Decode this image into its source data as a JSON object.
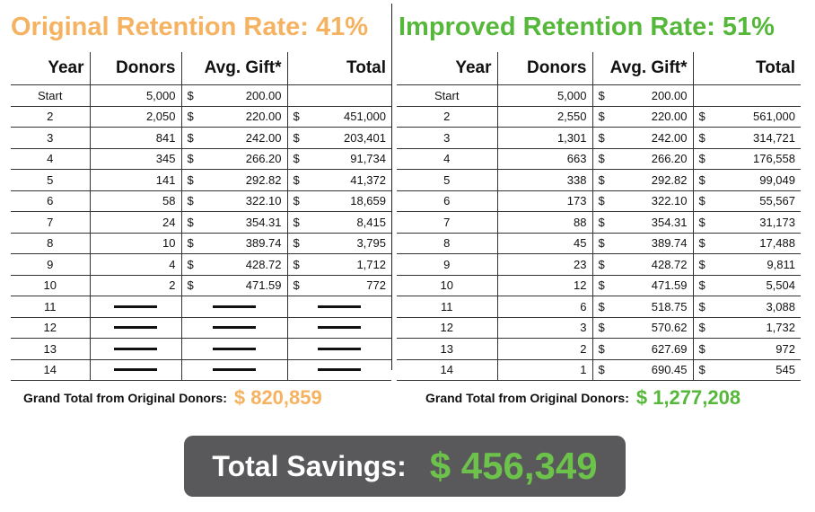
{
  "left": {
    "title": "Original Retention Rate: 41%",
    "headers": {
      "year": "Year",
      "donors": "Donors",
      "avg_gift": "Avg. Gift*",
      "total": "Total"
    },
    "rows": [
      {
        "year": "Start",
        "donors": "5,000",
        "avg_gift": "200.00",
        "total": ""
      },
      {
        "year": "2",
        "donors": "2,050",
        "avg_gift": "220.00",
        "total": "451,000"
      },
      {
        "year": "3",
        "donors": "841",
        "avg_gift": "242.00",
        "total": "203,401"
      },
      {
        "year": "4",
        "donors": "345",
        "avg_gift": "266.20",
        "total": "91,734"
      },
      {
        "year": "5",
        "donors": "141",
        "avg_gift": "292.82",
        "total": "41,372"
      },
      {
        "year": "6",
        "donors": "58",
        "avg_gift": "322.10",
        "total": "18,659"
      },
      {
        "year": "7",
        "donors": "24",
        "avg_gift": "354.31",
        "total": "8,415"
      },
      {
        "year": "8",
        "donors": "10",
        "avg_gift": "389.74",
        "total": "3,795"
      },
      {
        "year": "9",
        "donors": "4",
        "avg_gift": "428.72",
        "total": "1,712"
      },
      {
        "year": "10",
        "donors": "2",
        "avg_gift": "471.59",
        "total": "772"
      }
    ],
    "empty_years": [
      "11",
      "12",
      "13",
      "14"
    ],
    "grand_label": "Grand Total from Original Donors:",
    "grand_value": "$ 820,859"
  },
  "right": {
    "title": "Improved Retention Rate: 51%",
    "headers": {
      "year": "Year",
      "donors": "Donors",
      "avg_gift": "Avg. Gift*",
      "total": "Total"
    },
    "rows": [
      {
        "year": "Start",
        "donors": "5,000",
        "avg_gift": "200.00",
        "total": ""
      },
      {
        "year": "2",
        "donors": "2,550",
        "avg_gift": "220.00",
        "total": "561,000"
      },
      {
        "year": "3",
        "donors": "1,301",
        "avg_gift": "242.00",
        "total": "314,721"
      },
      {
        "year": "4",
        "donors": "663",
        "avg_gift": "266.20",
        "total": "176,558"
      },
      {
        "year": "5",
        "donors": "338",
        "avg_gift": "292.82",
        "total": "99,049"
      },
      {
        "year": "6",
        "donors": "173",
        "avg_gift": "322.10",
        "total": "55,567"
      },
      {
        "year": "7",
        "donors": "88",
        "avg_gift": "354.31",
        "total": "31,173"
      },
      {
        "year": "8",
        "donors": "45",
        "avg_gift": "389.74",
        "total": "17,488"
      },
      {
        "year": "9",
        "donors": "23",
        "avg_gift": "428.72",
        "total": "9,811"
      },
      {
        "year": "10",
        "donors": "12",
        "avg_gift": "471.59",
        "total": "5,504"
      },
      {
        "year": "11",
        "donors": "6",
        "avg_gift": "518.75",
        "total": "3,088"
      },
      {
        "year": "12",
        "donors": "3",
        "avg_gift": "570.62",
        "total": "1,732"
      },
      {
        "year": "13",
        "donors": "2",
        "avg_gift": "627.69",
        "total": "972"
      },
      {
        "year": "14",
        "donors": "1",
        "avg_gift": "690.45",
        "total": "545"
      }
    ],
    "grand_label": "Grand Total from Original Donors:",
    "grand_value": "$ 1,277,208"
  },
  "currency_symbol": "$",
  "savings": {
    "label": "Total Savings:",
    "value": "$ 456,349"
  },
  "colors": {
    "orange": "#f5b260",
    "green": "#56b83a",
    "savings_bg": "#59595b"
  }
}
